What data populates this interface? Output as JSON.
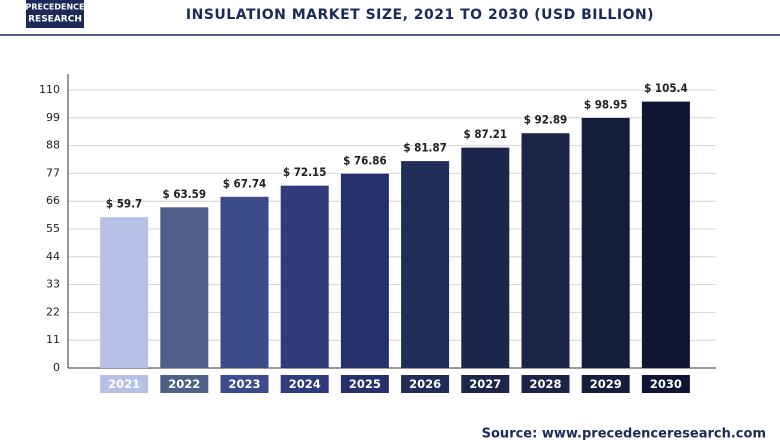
{
  "logo": {
    "line1": "PRECEDENCE",
    "line2": "RESEARCH"
  },
  "source": "Source: www.precedenceresearch.com",
  "chart_data": {
    "type": "bar",
    "title": "INSULATION MARKET SIZE, 2021 TO 2030 (USD BILLION)",
    "categories": [
      "2021",
      "2022",
      "2023",
      "2024",
      "2025",
      "2026",
      "2027",
      "2028",
      "2029",
      "2030"
    ],
    "values": [
      59.7,
      63.59,
      67.74,
      72.15,
      76.86,
      81.87,
      87.21,
      92.89,
      98.95,
      105.4
    ],
    "value_labels": [
      "$ 59.7",
      "$ 63.59",
      "$ 67.74",
      "$ 72.15",
      "$ 76.86",
      "$ 81.87",
      "$ 87.21",
      "$ 92.89",
      "$ 98.95",
      "$ 105.4"
    ],
    "colors": [
      "#b7c1e8",
      "#505f87",
      "#3d4a8c",
      "#2f3b7c",
      "#26306d",
      "#202d58",
      "#1c264b",
      "#1a2446",
      "#151d3c",
      "#0e1634"
    ],
    "ylim": [
      0,
      110
    ],
    "yticks": [
      0,
      11,
      22,
      33,
      44,
      55,
      66,
      77,
      88,
      99,
      110
    ],
    "grid": true
  }
}
